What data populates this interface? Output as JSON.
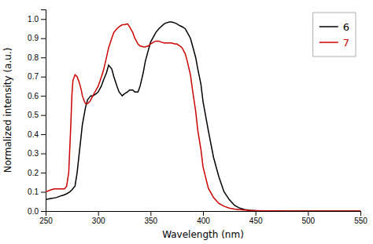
{
  "chart_data": {
    "type": "line",
    "xlabel": "Wavelength (nm)",
    "ylabel": "Normalized intensity (a.u.)",
    "xlim": [
      250,
      550
    ],
    "ylim": [
      0.0,
      1.05
    ],
    "xticks": [
      250,
      300,
      350,
      400,
      450,
      500,
      550
    ],
    "yticks": [
      {
        "value": 0.0,
        "label": "0.0"
      },
      0.1,
      0.2,
      0.3,
      0.4,
      0.5,
      0.6,
      0.7,
      0.8,
      0.9,
      {
        "value": 1.0,
        "label": "1.0"
      }
    ],
    "legend": "upper right",
    "series": [
      {
        "name": "6",
        "color": "#000000",
        "x": [
          250,
          255,
          260,
          265,
          268,
          270,
          273,
          275,
          278,
          280,
          283,
          285,
          288,
          290,
          293,
          295,
          298,
          300,
          303,
          305,
          308,
          310,
          313,
          315,
          318,
          320,
          323,
          325,
          328,
          330,
          333,
          335,
          338,
          340,
          343,
          345,
          348,
          350,
          353,
          355,
          358,
          360,
          363,
          365,
          368,
          370,
          373,
          375,
          378,
          380,
          383,
          385,
          388,
          390,
          393,
          395,
          398,
          400,
          405,
          410,
          415,
          420,
          425,
          430,
          435,
          440,
          445,
          450,
          460,
          470,
          480,
          490,
          500,
          510,
          520,
          530,
          540,
          550
        ],
        "values": [
          0.06,
          0.065,
          0.07,
          0.08,
          0.085,
          0.09,
          0.1,
          0.11,
          0.13,
          0.2,
          0.35,
          0.45,
          0.54,
          0.58,
          0.6,
          0.6,
          0.61,
          0.62,
          0.65,
          0.68,
          0.72,
          0.76,
          0.74,
          0.7,
          0.65,
          0.62,
          0.6,
          0.61,
          0.62,
          0.63,
          0.63,
          0.62,
          0.62,
          0.65,
          0.72,
          0.78,
          0.84,
          0.88,
          0.91,
          0.93,
          0.95,
          0.96,
          0.975,
          0.98,
          0.985,
          0.985,
          0.98,
          0.975,
          0.965,
          0.96,
          0.95,
          0.93,
          0.9,
          0.86,
          0.8,
          0.74,
          0.66,
          0.57,
          0.42,
          0.28,
          0.18,
          0.1,
          0.06,
          0.03,
          0.015,
          0.007,
          0.004,
          0.002,
          0.001,
          0.001,
          0.0,
          0.0,
          0.0,
          0.0,
          0.0,
          0.0,
          0.0,
          0.0
        ]
      },
      {
        "name": "7",
        "color": "#cc0000",
        "x": [
          250,
          255,
          258,
          260,
          262,
          264,
          266,
          268,
          270,
          272,
          274,
          275,
          276,
          278,
          280,
          282,
          283,
          284,
          285,
          287,
          288,
          290,
          292,
          294,
          295,
          297,
          298,
          300,
          302,
          305,
          308,
          310,
          313,
          315,
          318,
          320,
          323,
          325,
          328,
          330,
          333,
          335,
          338,
          340,
          343,
          345,
          348,
          350,
          353,
          355,
          358,
          360,
          363,
          365,
          368,
          370,
          373,
          375,
          378,
          380,
          383,
          385,
          388,
          390,
          393,
          395,
          398,
          400,
          405,
          410,
          415,
          420,
          425,
          430,
          435,
          440,
          445,
          450,
          460,
          470,
          480,
          490,
          500,
          510,
          520,
          530,
          540,
          550
        ],
        "values": [
          0.1,
          0.11,
          0.115,
          0.115,
          0.115,
          0.115,
          0.115,
          0.115,
          0.13,
          0.2,
          0.45,
          0.6,
          0.68,
          0.71,
          0.7,
          0.67,
          0.65,
          0.63,
          0.6,
          0.57,
          0.56,
          0.56,
          0.57,
          0.59,
          0.6,
          0.62,
          0.63,
          0.65,
          0.68,
          0.73,
          0.8,
          0.85,
          0.9,
          0.93,
          0.95,
          0.96,
          0.97,
          0.97,
          0.975,
          0.96,
          0.93,
          0.9,
          0.87,
          0.86,
          0.855,
          0.855,
          0.86,
          0.87,
          0.88,
          0.885,
          0.885,
          0.88,
          0.875,
          0.875,
          0.875,
          0.875,
          0.87,
          0.87,
          0.86,
          0.85,
          0.82,
          0.78,
          0.71,
          0.63,
          0.52,
          0.42,
          0.32,
          0.23,
          0.12,
          0.07,
          0.04,
          0.025,
          0.015,
          0.01,
          0.007,
          0.005,
          0.003,
          0.002,
          0.001,
          0.001,
          0.0,
          0.0,
          0.0,
          0.0,
          0.0,
          0.0,
          0.0,
          0.0
        ]
      }
    ]
  }
}
